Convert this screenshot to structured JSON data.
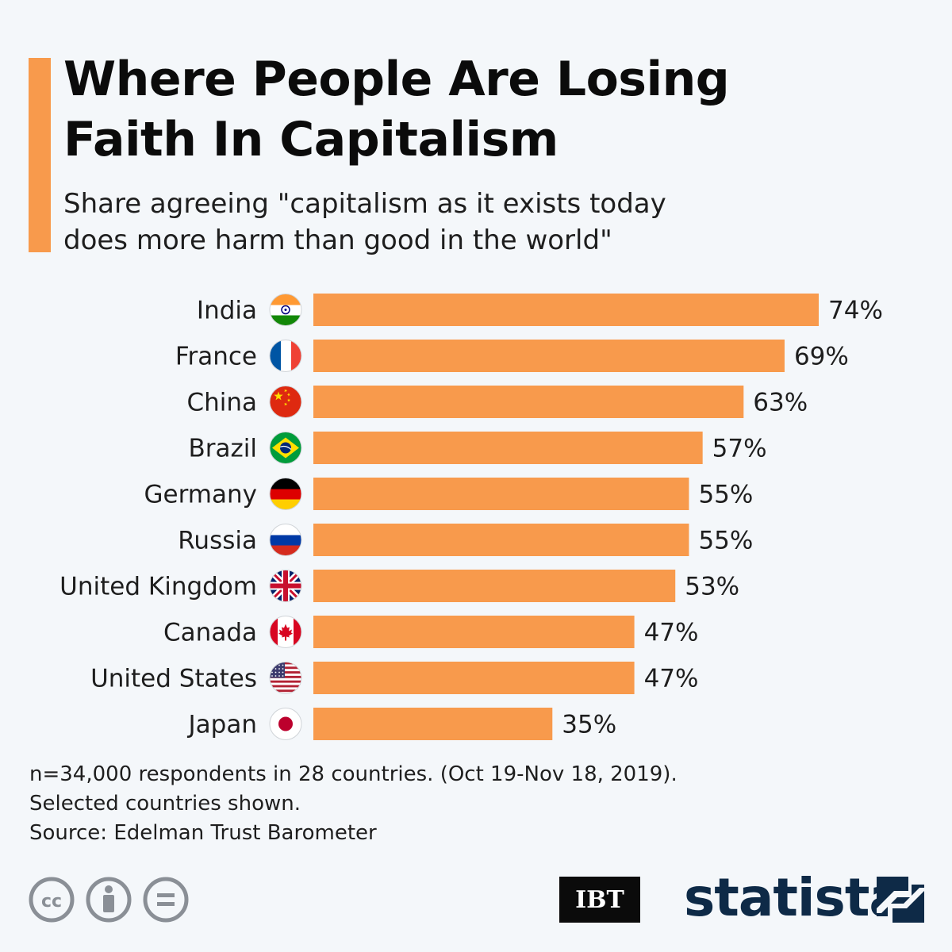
{
  "header": {
    "title_lines": [
      "Where People Are Losing",
      "Faith In Capitalism"
    ],
    "subtitle_lines": [
      "Share agreeing \"capitalism as it exists today",
      "does more harm than good in the world\""
    ]
  },
  "colors": {
    "bar": "#f89a4c",
    "accent": "#f89a4c",
    "text": "#1e1e1e",
    "background": "#f4f7fa"
  },
  "chart_data": {
    "type": "bar",
    "orientation": "horizontal",
    "title": "Where People Are Losing Faith In Capitalism",
    "subtitle": "Share agreeing \"capitalism as it exists today does more harm than good in the world\"",
    "categories": [
      "India",
      "France",
      "China",
      "Brazil",
      "Germany",
      "Russia",
      "United Kingdom",
      "Canada",
      "United States",
      "Japan"
    ],
    "values": [
      74,
      69,
      63,
      57,
      55,
      55,
      53,
      47,
      47,
      35
    ],
    "value_labels": [
      "74%",
      "69%",
      "63%",
      "57%",
      "55%",
      "55%",
      "53%",
      "47%",
      "47%",
      "35%"
    ],
    "flags": [
      "india-flag-icon",
      "france-flag-icon",
      "china-flag-icon",
      "brazil-flag-icon",
      "germany-flag-icon",
      "russia-flag-icon",
      "uk-flag-icon",
      "canada-flag-icon",
      "usa-flag-icon",
      "japan-flag-icon"
    ],
    "xlim": [
      0,
      74
    ],
    "unit": "%"
  },
  "footer": {
    "note_lines": [
      "n=34,000 respondents in 28 countries. (Oct 19-Nov 18, 2019).",
      "Selected countries shown.",
      "Source: Edelman Trust Barometer"
    ],
    "license_icons": [
      "creative-commons-icon",
      "attribution-icon",
      "no-derivatives-icon"
    ],
    "partner_logo": "IBT",
    "brand_logo": "statista"
  }
}
